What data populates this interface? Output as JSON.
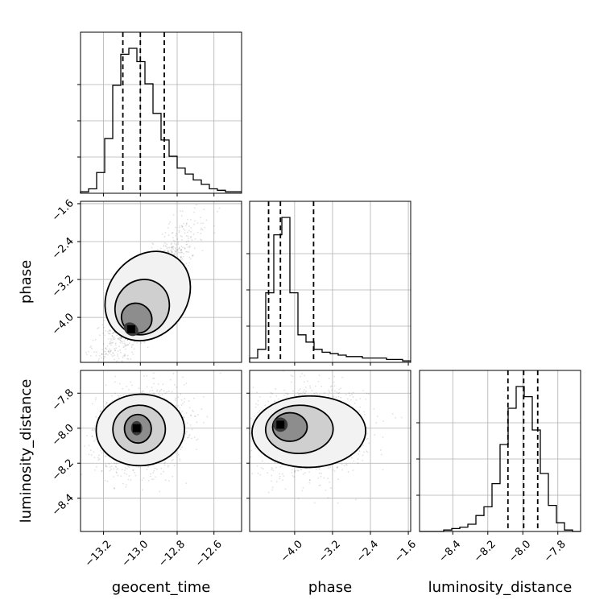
{
  "chart_data": {
    "type": "corner",
    "title": "",
    "parameters": [
      "geocent_time",
      "phase",
      "luminosity_distance"
    ],
    "axes": {
      "geocent_time": {
        "label": "geocent_time",
        "range": [
          -13.325,
          -12.45
        ],
        "ticks": [
          -13.2,
          -13.0,
          -12.8,
          -12.6
        ],
        "tick_labels": [
          "−13.2",
          "−13.0",
          "−12.8",
          "−12.6"
        ]
      },
      "phase": {
        "label": "phase",
        "range": [
          -4.95,
          -1.55
        ],
        "ticks": [
          -4.0,
          -3.2,
          -2.4,
          -1.6
        ],
        "tick_labels": [
          "−4.0",
          "−3.2",
          "−2.4",
          "−1.6"
        ]
      },
      "luminosity_distance": {
        "label": "luminosity_distance",
        "range": [
          -8.59,
          -7.67
        ],
        "ticks": [
          -8.4,
          -8.2,
          -8.0,
          -7.8
        ],
        "tick_labels": [
          "−8.4",
          "−8.2",
          "−8.0",
          "−7.8"
        ]
      }
    },
    "histograms": {
      "geocent_time": {
        "bin_edges_range": [
          -13.325,
          -12.45
        ],
        "counts": [
          1,
          3,
          14,
          37,
          73,
          94,
          98,
          89,
          74,
          54,
          36,
          25,
          17,
          13,
          9,
          6,
          3,
          2,
          1,
          1
        ],
        "quantiles": [
          -13.095,
          -13.0,
          -12.87
        ]
      },
      "phase": {
        "bin_edges_range": [
          -4.95,
          -1.55
        ],
        "counts": [
          3,
          9,
          48,
          88,
          100,
          48,
          19,
          14,
          9,
          7,
          6,
          5,
          4,
          4,
          3,
          3,
          3,
          2,
          2,
          1
        ],
        "quantiles": [
          -4.55,
          -4.3,
          -3.6
        ]
      },
      "luminosity_distance": {
        "bin_edges_range": [
          -8.59,
          -7.67
        ],
        "counts": [
          0,
          0,
          0,
          1,
          2,
          3,
          5,
          11,
          17,
          33,
          60,
          85,
          100,
          93,
          70,
          40,
          18,
          6,
          1,
          0
        ],
        "quantiles": [
          -8.085,
          -7.995,
          -7.915
        ]
      }
    },
    "joint": [
      {
        "x": "geocent_time",
        "y": "phase",
        "mean": [
          -12.96,
          -3.55
        ],
        "std": [
          0.13,
          0.75
        ],
        "correlation": 0.85,
        "mode": [
          -13.05,
          -4.25
        ]
      },
      {
        "x": "geocent_time",
        "y": "luminosity_distance",
        "mean": [
          -13.0,
          -8.01
        ],
        "std": [
          0.12,
          0.12
        ],
        "correlation": 0.15,
        "mode": [
          -13.02,
          -8.0
        ]
      },
      {
        "x": "phase",
        "y": "luminosity_distance",
        "mean": [
          -3.7,
          -8.02
        ],
        "std": [
          0.6,
          0.12
        ],
        "correlation": 0.1,
        "mode": [
          -4.3,
          -7.98
        ]
      }
    ],
    "grid": true,
    "colors": {
      "line": "#000000",
      "grid": "#b0b0b0",
      "points": "#000000"
    }
  }
}
